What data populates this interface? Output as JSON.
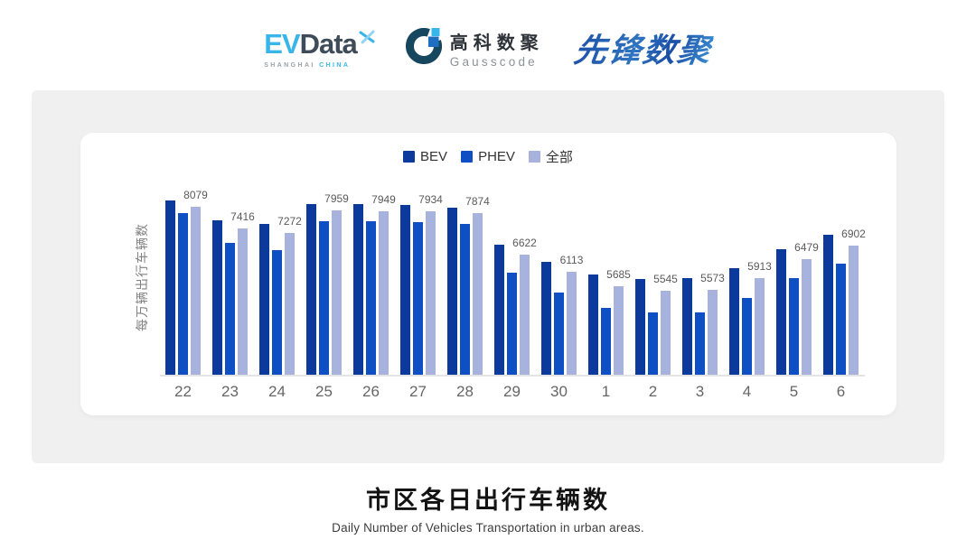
{
  "header": {
    "evdata": {
      "ev": "EV",
      "data": "Data",
      "sub_left": "SHANGHAI",
      "sub_right": "CHINA"
    },
    "gausscode": {
      "cn": "高科数聚",
      "en": "Gausscode"
    },
    "xianfeng": {
      "text": "先锋数聚"
    }
  },
  "chart_data": {
    "type": "bar",
    "title": "市区各日出行车辆数",
    "subtitle": "Daily Number of Vehicles Transportation in urban areas.",
    "ylabel": "每万辆出行车辆数",
    "xlabel": "",
    "categories": [
      "22",
      "23",
      "24",
      "25",
      "26",
      "27",
      "28",
      "29",
      "30",
      "1",
      "2",
      "3",
      "4",
      "5",
      "6"
    ],
    "series": [
      {
        "name": "BEV",
        "color": "#0c3a9c",
        "values": [
          8260,
          7670,
          7560,
          8160,
          8160,
          8140,
          8060,
          6920,
          6410,
          6030,
          5880,
          5910,
          6220,
          6790,
          7220
        ]
      },
      {
        "name": "PHEV",
        "color": "#0e50c4",
        "values": [
          7880,
          6990,
          6760,
          7650,
          7630,
          7620,
          7550,
          6080,
          5470,
          5010,
          4890,
          4890,
          5320,
          5910,
          6360
        ]
      },
      {
        "name": "全部",
        "color": "#a7b2dd",
        "values": [
          8079,
          7416,
          7272,
          7959,
          7949,
          7934,
          7874,
          6622,
          6113,
          5685,
          5545,
          5573,
          5913,
          6479,
          6902
        ]
      }
    ],
    "value_labels": [
      8079,
      7416,
      7272,
      7959,
      7949,
      7934,
      7874,
      6622,
      6113,
      5685,
      5545,
      5573,
      5913,
      6479,
      6902
    ],
    "label_series": "全部",
    "ylim": [
      3000,
      9000
    ],
    "grid": false,
    "legend_position": "top",
    "colors": {
      "axis_line": "#e4e4e4",
      "tick_text": "#666666",
      "value_label": "#5a5a5a"
    }
  },
  "footer": {
    "title": "市区各日出行车辆数",
    "subtitle": "Daily Number of Vehicles Transportation in urban areas."
  }
}
